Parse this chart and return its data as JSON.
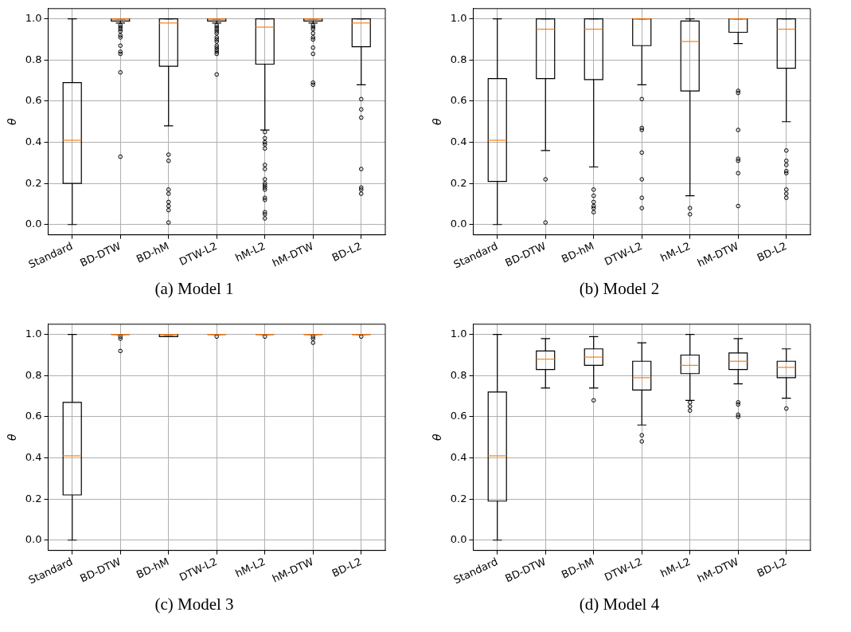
{
  "chart_data": [
    {
      "type": "box",
      "title": "(a) Model 1",
      "ylabel": "θ",
      "categories": [
        "Standard",
        "BD-DTW",
        "BD-hM",
        "DTW-L2",
        "hM-L2",
        "hM-DTW",
        "BD-L2"
      ],
      "ylim": [
        -0.05,
        1.05
      ],
      "yticks": [
        {
          "value": 0,
          "label": "0.0"
        },
        {
          "value": 0.2,
          "label": "0.2"
        },
        {
          "value": 0.4,
          "label": "0.4"
        },
        {
          "value": 0.6,
          "label": "0.6"
        },
        {
          "value": 0.8,
          "label": "0.8"
        },
        {
          "value": 1,
          "label": "1.0"
        }
      ],
      "grid": true,
      "series": [
        {
          "color": "#000000",
          "boxes": [
            {
              "low": 0,
              "q1": 0.2,
              "median": 0.41,
              "q3": 0.69,
              "high": 1.0
            },
            {
              "low": 0.98,
              "q1": 0.99,
              "median": 1.0,
              "q3": 1.0,
              "high": 1.0,
              "outliers": [
                0.97,
                0.96,
                0.95,
                0.94,
                0.92,
                0.91,
                0.87,
                0.84,
                0.83,
                0.74,
                0.33
              ]
            },
            {
              "low": 0.48,
              "q1": 0.77,
              "median": 0.98,
              "q3": 1.0,
              "high": 1.0,
              "outliers": [
                0.34,
                0.31,
                0.17,
                0.15,
                0.11,
                0.09,
                0.07,
                0.01
              ]
            },
            {
              "low": 0.98,
              "q1": 0.99,
              "median": 1.0,
              "q3": 1.0,
              "high": 1.0,
              "outliers": [
                0.97,
                0.96,
                0.95,
                0.94,
                0.93,
                0.91,
                0.9,
                0.89,
                0.87,
                0.86,
                0.85,
                0.84,
                0.83,
                0.73
              ]
            },
            {
              "low": 0.46,
              "q1": 0.78,
              "median": 0.96,
              "q3": 1.0,
              "high": 1.0,
              "outliers": [
                0.45,
                0.42,
                0.4,
                0.39,
                0.37,
                0.29,
                0.27,
                0.22,
                0.2,
                0.19,
                0.18,
                0.17,
                0.13,
                0.12,
                0.06,
                0.05,
                0.03
              ]
            },
            {
              "low": 0.98,
              "q1": 0.99,
              "median": 1.0,
              "q3": 1.0,
              "high": 1.0,
              "outliers": [
                0.97,
                0.96,
                0.95,
                0.93,
                0.91,
                0.9,
                0.86,
                0.83,
                0.69,
                0.68
              ]
            },
            {
              "low": 0.68,
              "q1": 0.865,
              "median": 0.98,
              "q3": 1.0,
              "high": 1.0,
              "outliers": [
                0.61,
                0.56,
                0.52,
                0.27,
                0.18,
                0.17,
                0.15
              ]
            }
          ]
        }
      ]
    },
    {
      "type": "box",
      "title": "(b) Model 2",
      "ylabel": "θ",
      "categories": [
        "Standard",
        "BD-DTW",
        "BD-hM",
        "DTW-L2",
        "hM-L2",
        "hM-DTW",
        "BD-L2"
      ],
      "ylim": [
        -0.05,
        1.05
      ],
      "yticks": [
        {
          "value": 0,
          "label": "0.0"
        },
        {
          "value": 0.2,
          "label": "0.2"
        },
        {
          "value": 0.4,
          "label": "0.4"
        },
        {
          "value": 0.6,
          "label": "0.6"
        },
        {
          "value": 0.8,
          "label": "0.8"
        },
        {
          "value": 1,
          "label": "1.0"
        }
      ],
      "grid": true,
      "series": [
        {
          "color": "#000000",
          "boxes": [
            {
              "low": 0,
              "q1": 0.21,
              "median": 0.41,
              "q3": 0.71,
              "high": 1.0
            },
            {
              "low": 0.36,
              "q1": 0.71,
              "median": 0.95,
              "q3": 1.0,
              "high": 1.0,
              "outliers": [
                0.22,
                0.01
              ]
            },
            {
              "low": 0.28,
              "q1": 0.705,
              "median": 0.95,
              "q3": 1.0,
              "high": 1.0,
              "outliers": [
                0.17,
                0.14,
                0.11,
                0.09,
                0.08,
                0.06
              ]
            },
            {
              "low": 0.68,
              "q1": 0.87,
              "median": 1.0,
              "q3": 1.0,
              "high": 1.0,
              "outliers": [
                0.61,
                0.47,
                0.46,
                0.35,
                0.22,
                0.13,
                0.08
              ]
            },
            {
              "low": 0.14,
              "q1": 0.65,
              "median": 0.89,
              "q3": 0.99,
              "high": 1.0,
              "outliers": [
                0.08,
                0.05
              ]
            },
            {
              "low": 0.88,
              "q1": 0.935,
              "median": 1.0,
              "q3": 1.0,
              "high": 1.0,
              "outliers": [
                0.65,
                0.64,
                0.46,
                0.32,
                0.31,
                0.25,
                0.09
              ]
            },
            {
              "low": 0.5,
              "q1": 0.76,
              "median": 0.95,
              "q3": 1.0,
              "high": 1.0,
              "outliers": [
                0.36,
                0.31,
                0.29,
                0.26,
                0.25,
                0.17,
                0.15,
                0.13
              ]
            }
          ]
        }
      ]
    },
    {
      "type": "box",
      "title": "(c) Model 3",
      "ylabel": "θ",
      "categories": [
        "Standard",
        "BD-DTW",
        "BD-hM",
        "DTW-L2",
        "hM-L2",
        "hM-DTW",
        "BD-L2"
      ],
      "ylim": [
        -0.05,
        1.05
      ],
      "yticks": [
        {
          "value": 0,
          "label": "0.0"
        },
        {
          "value": 0.2,
          "label": "0.2"
        },
        {
          "value": 0.4,
          "label": "0.4"
        },
        {
          "value": 0.6,
          "label": "0.6"
        },
        {
          "value": 0.8,
          "label": "0.8"
        },
        {
          "value": 1,
          "label": "1.0"
        }
      ],
      "grid": true,
      "series": [
        {
          "color": "#000000",
          "boxes": [
            {
              "low": 0,
              "q1": 0.22,
              "median": 0.41,
              "q3": 0.67,
              "high": 1.0
            },
            {
              "low": 1.0,
              "q1": 1.0,
              "median": 1.0,
              "q3": 1.0,
              "high": 1.0,
              "outliers": [
                0.99,
                0.98,
                0.92
              ]
            },
            {
              "low": 0.99,
              "q1": 0.99,
              "median": 1.0,
              "q3": 1.0,
              "high": 1.0
            },
            {
              "low": 1.0,
              "q1": 1.0,
              "median": 1.0,
              "q3": 1.0,
              "high": 1.0,
              "outliers": [
                0.99
              ]
            },
            {
              "low": 1.0,
              "q1": 1.0,
              "median": 1.0,
              "q3": 1.0,
              "high": 1.0,
              "outliers": [
                0.99
              ]
            },
            {
              "low": 1.0,
              "q1": 1.0,
              "median": 1.0,
              "q3": 1.0,
              "high": 1.0,
              "outliers": [
                0.99,
                0.98,
                0.96
              ]
            },
            {
              "low": 1.0,
              "q1": 1.0,
              "median": 1.0,
              "q3": 1.0,
              "high": 1.0,
              "outliers": [
                0.99
              ]
            }
          ]
        }
      ]
    },
    {
      "type": "box",
      "title": "(d) Model 4",
      "ylabel": "θ",
      "categories": [
        "Standard",
        "BD-DTW",
        "BD-hM",
        "DTW-L2",
        "hM-L2",
        "hM-DTW",
        "BD-L2"
      ],
      "ylim": [
        -0.05,
        1.05
      ],
      "yticks": [
        {
          "value": 0,
          "label": "0.0"
        },
        {
          "value": 0.2,
          "label": "0.2"
        },
        {
          "value": 0.4,
          "label": "0.4"
        },
        {
          "value": 0.6,
          "label": "0.6"
        },
        {
          "value": 0.8,
          "label": "0.8"
        },
        {
          "value": 1,
          "label": "1.0"
        }
      ],
      "grid": true,
      "series": [
        {
          "color": "#000000",
          "boxes": [
            {
              "low": 0,
              "q1": 0.19,
              "median": 0.41,
              "q3": 0.72,
              "high": 1.0
            },
            {
              "low": 0.74,
              "q1": 0.83,
              "median": 0.88,
              "q3": 0.92,
              "high": 0.98
            },
            {
              "low": 0.74,
              "q1": 0.85,
              "median": 0.89,
              "q3": 0.93,
              "high": 0.99,
              "outliers": [
                0.68
              ]
            },
            {
              "low": 0.56,
              "q1": 0.73,
              "median": 0.79,
              "q3": 0.87,
              "high": 0.96,
              "outliers": [
                0.51,
                0.48
              ]
            },
            {
              "low": 0.68,
              "q1": 0.81,
              "median": 0.85,
              "q3": 0.9,
              "high": 1.0,
              "outliers": [
                0.67,
                0.65,
                0.63
              ]
            },
            {
              "low": 0.76,
              "q1": 0.83,
              "median": 0.87,
              "q3": 0.91,
              "high": 0.98,
              "outliers": [
                0.67,
                0.66,
                0.61,
                0.6
              ]
            },
            {
              "low": 0.69,
              "q1": 0.79,
              "median": 0.84,
              "q3": 0.87,
              "high": 0.93,
              "outliers": [
                0.64
              ]
            }
          ]
        }
      ]
    }
  ]
}
